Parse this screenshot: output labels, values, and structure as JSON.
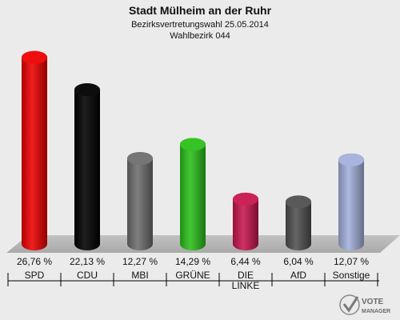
{
  "chart_data": {
    "type": "bar",
    "title": "Stadt Mülheim an der Ruhr",
    "subtitle_1": "Bezirksvertretungswahl 25.05.2014",
    "subtitle_2": "Wahlbezirk 044",
    "categories": [
      "SPD",
      "CDU",
      "MBI",
      "GRÜNE",
      "DIE LINKE",
      "AfD",
      "Sonstige"
    ],
    "category_lines": [
      [
        "SPD"
      ],
      [
        "CDU"
      ],
      [
        "MBI"
      ],
      [
        "GRÜNE"
      ],
      [
        "DIE",
        "LINKE"
      ],
      [
        "AfD"
      ],
      [
        "Sonstige"
      ]
    ],
    "values": [
      26.76,
      22.13,
      12.27,
      14.29,
      6.44,
      6.04,
      12.07
    ],
    "value_labels": [
      "26,76 %",
      "22,13 %",
      "12,27 %",
      "14,29 %",
      "6,44 %",
      "6,04 %",
      "12,07 %"
    ],
    "colors": [
      "#ee0000",
      "#000000",
      "#6e6e6e",
      "#2ac019",
      "#c8164f",
      "#505050",
      "#a3b0dc"
    ],
    "ylim": [
      0,
      28
    ]
  },
  "logo": {
    "line1": "VOTE",
    "line2": "MANAGER"
  }
}
